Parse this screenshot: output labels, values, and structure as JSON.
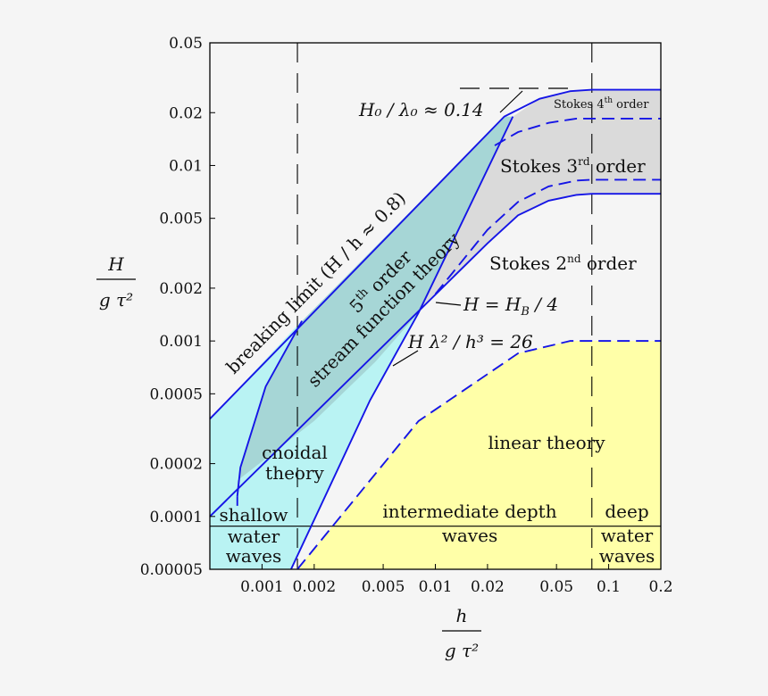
{
  "chart_data": {
    "type": "area",
    "title": "",
    "xscale": "log",
    "yscale": "log",
    "xlim": [
      0.0005,
      0.2
    ],
    "ylim": [
      5e-05,
      0.05
    ],
    "xticks": [
      0.001,
      0.002,
      0.005,
      0.01,
      0.02,
      0.05,
      0.1,
      0.2
    ],
    "xtick_labels": [
      "0.001",
      "0.002",
      "0.005",
      "0.01",
      "0.02",
      "0.05",
      "0.1",
      "0.2"
    ],
    "yticks": [
      5e-05,
      0.0001,
      0.0002,
      0.0005,
      0.001,
      0.002,
      0.005,
      0.01,
      0.02,
      0.05
    ],
    "ytick_labels": [
      "0.00005",
      "0.0001",
      "0.0002",
      "0.0005",
      "0.001",
      "0.002",
      "0.005",
      "0.01",
      "0.02",
      "0.05"
    ],
    "xlabel_num": "h",
    "xlabel_den": "g τ²",
    "ylabel_num": "H",
    "ylabel_den": "g τ²",
    "vertical_lines_x": [
      0.0016,
      0.08
    ],
    "regions": [
      {
        "name": "linear theory",
        "color": "#ffffa8"
      },
      {
        "name": "cnoidal theory",
        "color": "#b9f3f3"
      },
      {
        "name": "5th order stream function theory",
        "color": "#a6d6d6"
      },
      {
        "name": "Stokes 3rd/4th order",
        "color": "#dadada"
      }
    ],
    "curves": [
      {
        "name": "breaking-limit",
        "style": "solid",
        "x": [
          0.0005,
          0.025,
          0.04,
          0.06,
          0.08,
          0.2
        ],
        "y": [
          0.00036,
          0.019,
          0.024,
          0.0265,
          0.027,
          0.027
        ]
      },
      {
        "name": "stokes-4th-boundary",
        "style": "dashed",
        "x": [
          0.022,
          0.03,
          0.045,
          0.065,
          0.08,
          0.2
        ],
        "y": [
          0.013,
          0.0155,
          0.0175,
          0.0185,
          0.0185,
          0.0185
        ]
      },
      {
        "name": "stokes-3rd-boundary",
        "style": "dashed",
        "x": [
          0.01,
          0.02,
          0.03,
          0.045,
          0.065,
          0.08,
          0.2
        ],
        "y": [
          0.00185,
          0.0043,
          0.0062,
          0.0076,
          0.0082,
          0.0083,
          0.0083
        ]
      },
      {
        "name": "H=HB/4",
        "style": "solid",
        "x": [
          0.0005,
          0.02,
          0.03,
          0.045,
          0.065,
          0.08,
          0.2
        ],
        "y": [
          0.0001,
          0.0036,
          0.0052,
          0.0063,
          0.0068,
          0.0069,
          0.0069
        ]
      },
      {
        "name": "ursell-26",
        "style": "solid",
        "x": [
          0.00147,
          0.0042,
          0.008,
          0.028
        ],
        "y": [
          5e-05,
          0.00046,
          0.00145,
          0.019
        ]
      },
      {
        "name": "cnoidal-stream-boundary",
        "style": "solid",
        "x": [
          0.00072,
          0.00075,
          0.00105,
          0.0017
        ],
        "y": [
          0.00013,
          0.00019,
          0.00055,
          0.0013
        ]
      },
      {
        "name": "linear-limit",
        "style": "dashed",
        "x": [
          0.0016,
          0.008,
          0.03,
          0.06,
          0.08,
          0.2
        ],
        "y": [
          5e-05,
          0.00035,
          0.00085,
          0.001,
          0.001,
          0.001
        ]
      }
    ],
    "shallow_cnoidal_lower_x": [
      0.0005,
      0.0016
    ],
    "depth_line_y": 8.8e-05
  },
  "labels": {
    "breaking": "breaking limit (H / h ≈ 0.8)",
    "steepness": "H₀ / λ₀ ≈ 0.14",
    "stokes4_main": "Stokes 4",
    "stokes4_sup": "th",
    "stokes4_tail": " order",
    "stokes3_main": "Stokes 3",
    "stokes3_sup": "rd",
    "stokes3_tail": " order",
    "stokes2_main": "Stokes 2",
    "stokes2_sup": "nd",
    "stokes2_tail": " order",
    "stream1_main": "5",
    "stream1_sup": "th",
    "stream1_tail": " order",
    "stream2": "stream function theory",
    "hb": "H = H",
    "hb_sub": "B",
    "hb_tail": " / 4",
    "ursell": "H λ² / h³ = 26",
    "cnoidal1": "cnoidal",
    "cnoidal2": "theory",
    "linear": "linear theory",
    "shallow1": "shallow",
    "shallow2": "water",
    "shallow3": "waves",
    "inter1": "intermediate depth",
    "inter2": "waves",
    "deep1": "deep",
    "deep2": "water",
    "deep3": "waves"
  }
}
